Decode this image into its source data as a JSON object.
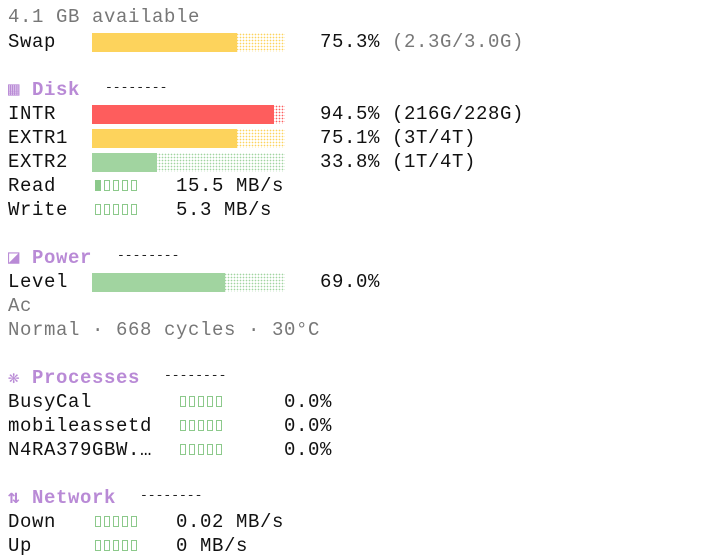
{
  "memory_note": "4.1 GB available",
  "swap": {
    "label": "Swap",
    "percent": {
      "value": 75.3,
      "label": "75.3%"
    },
    "detail": "(2.3G/3.0G)",
    "color": "#fdd35c"
  },
  "disk": {
    "title": "Disk",
    "rows": [
      {
        "label": "INTR",
        "percent": {
          "value": 94.5,
          "label": "94.5%"
        },
        "detail": "(216G/228G)",
        "color": "#fe5d5d"
      },
      {
        "label": "EXTR1",
        "percent": {
          "value": 75.1,
          "label": "75.1%"
        },
        "detail": "(3T/4T)",
        "color": "#fdd35c"
      },
      {
        "label": "EXTR2",
        "percent": {
          "value": 33.8,
          "label": "33.8%"
        },
        "detail": "(1T/4T)",
        "color": "#a1d4a0"
      }
    ],
    "read": {
      "label": "Read",
      "rate": "15.5 MB/s"
    },
    "write": {
      "label": "Write",
      "rate": "5.3 MB/s"
    }
  },
  "power": {
    "title": "Power",
    "level": {
      "label": "Level",
      "percent": {
        "value": 69.0,
        "label": "69.0%"
      },
      "color": "#a1d4a0"
    },
    "source": "Ac",
    "status": "Normal · 668 cycles · 30°C"
  },
  "processes": {
    "title": "Processes",
    "rows": [
      {
        "name": "BusyCal",
        "cpu": "0.0%"
      },
      {
        "name": "mobileassetd",
        "cpu": "0.0%"
      },
      {
        "name": "N4RA379GBW.…",
        "cpu": "0.0%"
      }
    ]
  },
  "network": {
    "title": "Network",
    "down": {
      "label": "Down",
      "rate": "0.02 MB/s"
    },
    "up": {
      "label": "Up",
      "rate": "0 MB/s"
    }
  }
}
